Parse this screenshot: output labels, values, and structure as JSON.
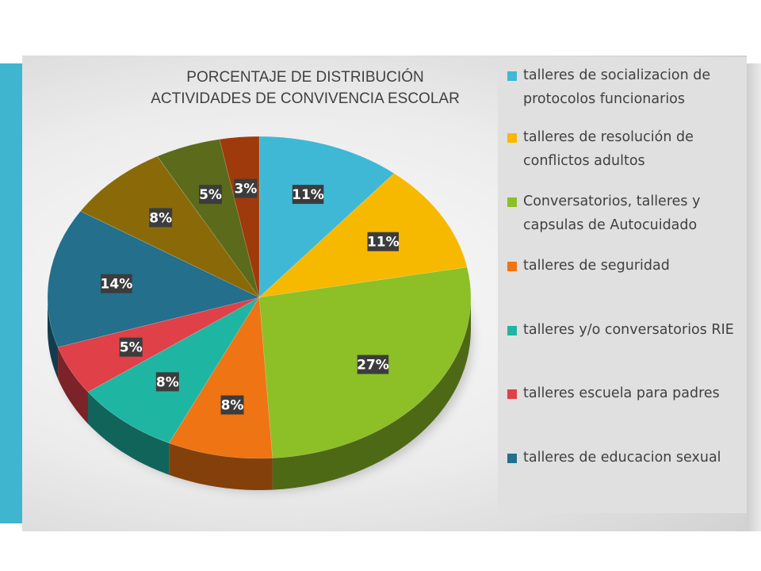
{
  "chart_data": {
    "type": "pie",
    "title": "PORCENTAJE DE DISTRIBUCIÓN\nACTIVIDADES DE CONVIVENCIA ESCOLAR",
    "three_d": true,
    "legend_position": "right",
    "slices": [
      {
        "name": "talleres de socializacion de protocolos funcionarios",
        "value": 11,
        "label": "11%",
        "color": "#3fb8d5"
      },
      {
        "name": "talleres de resolución de conflictos adultos",
        "value": 11,
        "label": "11%",
        "color": "#f7b800"
      },
      {
        "name": "Conversatorios, talleres y capsulas de Autocuidado",
        "value": 27,
        "label": "27%",
        "color": "#8dbf26"
      },
      {
        "name": "talleres de  seguridad",
        "value": 8,
        "label": "8%",
        "color": "#ee7414"
      },
      {
        "name": "talleres y/o conversatorios RIE",
        "value": 8,
        "label": "8%",
        "color": "#1fb5a3"
      },
      {
        "name": "talleres escuela para padres",
        "value": 5,
        "label": "5%",
        "color": "#e04048"
      },
      {
        "name": "talleres de educacion sexual",
        "value": 14,
        "label": "14%",
        "color": "#236f8c"
      },
      {
        "name": "",
        "value": 8,
        "label": "8%",
        "color": "#8a6a08"
      },
      {
        "name": "",
        "value": 5,
        "label": "5%",
        "color": "#5c6a1c"
      },
      {
        "name": "",
        "value": 3,
        "label": "3%",
        "color": "#9e3a0c"
      }
    ]
  },
  "legend": {
    "items": [
      {
        "label": "talleres de socializacion de protocolos funcionarios",
        "color": "#3fb8d5"
      },
      {
        "label": "talleres de resolución de conflictos adultos",
        "color": "#f7b800"
      },
      {
        "label": "Conversatorios, talleres y capsulas de Autocuidado",
        "color": "#8dbf26"
      },
      {
        "label": "talleres de  seguridad",
        "color": "#ee7414"
      },
      {
        "label": "talleres y/o conversatorios RIE",
        "color": "#1fb5a3"
      },
      {
        "label": "talleres escuela para padres",
        "color": "#e04048"
      },
      {
        "label": "talleres de educacion sexual",
        "color": "#236f8c"
      }
    ]
  }
}
